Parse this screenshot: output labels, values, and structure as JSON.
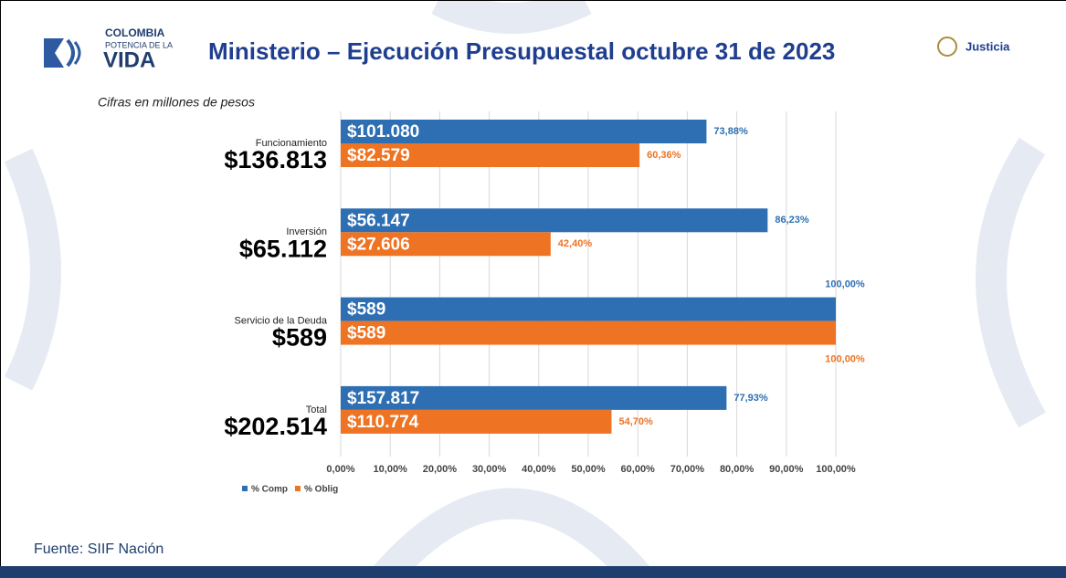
{
  "header": {
    "logo": [
      "COLOMBIA",
      "POTENCIA DE LA",
      "VIDA"
    ],
    "brand": "Justicia"
  },
  "footer": "Fuente: SIIF Nación",
  "chart_data": {
    "type": "hbar",
    "title": "Ministerio – Ejecución Presupuestal octubre 31 de 2023",
    "subtitle": "Cifras en millones de pesos",
    "categories": [
      "Funcionamiento",
      "Inversión",
      "Servicio de la Deuda",
      "Total"
    ],
    "category_totals": [
      "$136.813",
      "$65.112",
      "$589",
      "$202.514"
    ],
    "series": [
      {
        "name": "% Comp",
        "color": "#2e6fb3",
        "values": [
          73.88,
          86.23,
          100,
          77.93
        ],
        "value_labels": [
          "73,88%",
          "86,23%",
          "100,00%",
          "77,93%"
        ],
        "amounts": [
          "$101.080",
          "$56.147",
          "$589",
          "$157.817"
        ]
      },
      {
        "name": "% Oblig",
        "color": "#ee7322",
        "values": [
          60.36,
          42.4,
          100,
          54.7
        ],
        "value_labels": [
          "60,36%",
          "42,40%",
          "100,00%",
          "54,70%"
        ],
        "amounts": [
          "$82.579",
          "$27.606",
          "$589",
          "$110.774"
        ]
      }
    ],
    "xlim": [
      0,
      100
    ],
    "xticks": [
      {
        "value": 0,
        "label": "0,00%"
      },
      {
        "value": 10,
        "label": "10,00%"
      },
      {
        "value": 20,
        "label": "20,00%"
      },
      {
        "value": 30,
        "label": "30,00%"
      },
      {
        "value": 40,
        "label": "40,00%"
      },
      {
        "value": 50,
        "label": "50,00%"
      },
      {
        "value": 60,
        "label": "60,00%"
      },
      {
        "value": 70,
        "label": "70,00%"
      },
      {
        "value": 80,
        "label": "80,00%"
      },
      {
        "value": 90,
        "label": "90,00%"
      },
      {
        "value": 100,
        "label": "100,00%"
      }
    ],
    "grid": true,
    "legend": "bottom-left"
  }
}
